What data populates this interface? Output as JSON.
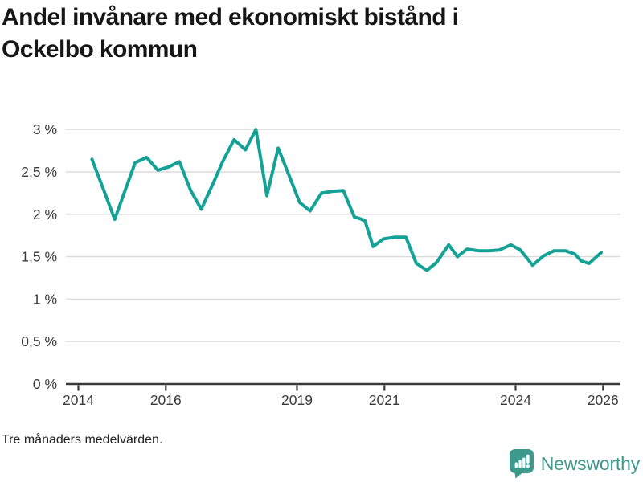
{
  "header": {
    "title_line1": "Andel invånare med ekonomiskt bistånd i",
    "title_line2": "Ockelbo kommun"
  },
  "footer": {
    "note": "Tre månaders medelvärden.",
    "brand_name": "Newsworthy"
  },
  "colors": {
    "line": "#14a297",
    "grid": "#dcdcdc",
    "axis": "#3a3a3a",
    "title_text": "#161616",
    "footnote_text": "#232323",
    "brand": "#3d998c",
    "background": "#ffffff"
  },
  "chart_data": {
    "type": "line",
    "title": "Andel invånare med ekonomiskt bistånd i Ockelbo kommun",
    "subtitle": "Tre månaders medelvärden.",
    "xlabel": "",
    "ylabel": "",
    "grid": "horizontal",
    "legend": "none",
    "xlim": [
      2013.7,
      2026.4
    ],
    "ylim": [
      0,
      3.17
    ],
    "x_ticks": [
      {
        "year": 2014,
        "label": "2014"
      },
      {
        "year": 2016,
        "label": "2016"
      },
      {
        "year": 2019,
        "label": "2019"
      },
      {
        "year": 2021,
        "label": "2021"
      },
      {
        "year": 2024,
        "label": "2024"
      },
      {
        "year": 2026,
        "label": "2026"
      }
    ],
    "y_ticks": [
      {
        "value": 0,
        "label": "0 %"
      },
      {
        "value": 0.5,
        "label": "0,5 %"
      },
      {
        "value": 1,
        "label": "1 %"
      },
      {
        "value": 1.5,
        "label": "1,5 %"
      },
      {
        "value": 2,
        "label": "2 %"
      },
      {
        "value": 2.5,
        "label": "2,5 %"
      },
      {
        "value": 3,
        "label": "3 %"
      }
    ],
    "series": [
      {
        "name": "Andel invånare med ekonomiskt bistånd, Ockelbo kommun (%)",
        "color": "#14a297",
        "points": [
          [
            2014.31,
            2.65
          ],
          [
            2014.57,
            2.3
          ],
          [
            2014.83,
            1.94
          ],
          [
            2015.06,
            2.27
          ],
          [
            2015.3,
            2.61
          ],
          [
            2015.56,
            2.67
          ],
          [
            2015.82,
            2.52
          ],
          [
            2016.07,
            2.56
          ],
          [
            2016.31,
            2.62
          ],
          [
            2016.57,
            2.28
          ],
          [
            2016.81,
            2.06
          ],
          [
            2017.06,
            2.34
          ],
          [
            2017.3,
            2.62
          ],
          [
            2017.56,
            2.88
          ],
          [
            2017.82,
            2.76
          ],
          [
            2018.06,
            3.0
          ],
          [
            2018.31,
            2.22
          ],
          [
            2018.57,
            2.78
          ],
          [
            2018.81,
            2.47
          ],
          [
            2019.06,
            2.14
          ],
          [
            2019.3,
            2.04
          ],
          [
            2019.56,
            2.25
          ],
          [
            2019.8,
            2.27
          ],
          [
            2020.06,
            2.28
          ],
          [
            2020.31,
            1.97
          ],
          [
            2020.55,
            1.93
          ],
          [
            2020.74,
            1.62
          ],
          [
            2020.98,
            1.71
          ],
          [
            2021.23,
            1.73
          ],
          [
            2021.49,
            1.73
          ],
          [
            2021.73,
            1.42
          ],
          [
            2021.97,
            1.34
          ],
          [
            2022.19,
            1.43
          ],
          [
            2022.47,
            1.64
          ],
          [
            2022.67,
            1.5
          ],
          [
            2022.89,
            1.59
          ],
          [
            2023.15,
            1.57
          ],
          [
            2023.39,
            1.57
          ],
          [
            2023.63,
            1.58
          ],
          [
            2023.89,
            1.64
          ],
          [
            2024.11,
            1.58
          ],
          [
            2024.39,
            1.4
          ],
          [
            2024.64,
            1.51
          ],
          [
            2024.88,
            1.57
          ],
          [
            2025.14,
            1.57
          ],
          [
            2025.36,
            1.53
          ],
          [
            2025.5,
            1.45
          ],
          [
            2025.68,
            1.42
          ],
          [
            2025.96,
            1.55
          ]
        ]
      }
    ]
  }
}
